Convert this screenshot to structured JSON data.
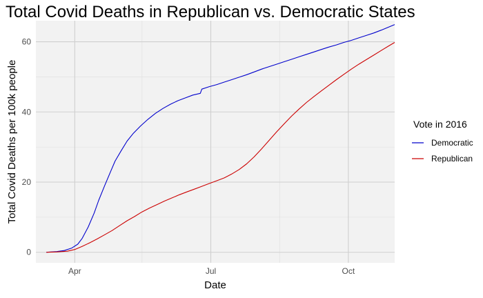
{
  "chart_data": {
    "type": "line",
    "title": "Total Covid Deaths in Republican vs. Democratic States",
    "xlabel": "Date",
    "ylabel": "Total Covid Deaths per 100k people",
    "x_range": [
      "2020-03-06",
      "2020-11-01"
    ],
    "ylim": [
      -3,
      66
    ],
    "x_ticks": [
      {
        "date": "2020-04-01",
        "label": "Apr"
      },
      {
        "date": "2020-07-01",
        "label": "Jul"
      },
      {
        "date": "2020-10-01",
        "label": "Oct"
      }
    ],
    "x_minor_ticks": [
      "2020-05-16",
      "2020-08-16"
    ],
    "y_ticks": [
      0,
      20,
      40,
      60
    ],
    "y_minor_ticks": [
      10,
      30,
      50
    ],
    "grid": true,
    "legend": {
      "title": "Vote in 2016",
      "position": "right"
    },
    "series": [
      {
        "name": "Democratic",
        "color": "#0000CC",
        "points": [
          [
            "2020-03-13",
            0.0
          ],
          [
            "2020-03-20",
            0.2
          ],
          [
            "2020-03-25",
            0.5
          ],
          [
            "2020-03-30",
            1.2
          ],
          [
            "2020-04-03",
            2.3
          ],
          [
            "2020-04-06",
            4.0
          ],
          [
            "2020-04-10",
            7.2
          ],
          [
            "2020-04-14",
            11.2
          ],
          [
            "2020-04-17",
            14.8
          ],
          [
            "2020-04-21",
            19.0
          ],
          [
            "2020-04-25",
            23.0
          ],
          [
            "2020-04-28",
            26.0
          ],
          [
            "2020-05-02",
            28.9
          ],
          [
            "2020-05-06",
            31.7
          ],
          [
            "2020-05-10",
            33.8
          ],
          [
            "2020-05-15",
            36.0
          ],
          [
            "2020-05-20",
            37.9
          ],
          [
            "2020-05-25",
            39.6
          ],
          [
            "2020-05-30",
            41.0
          ],
          [
            "2020-06-04",
            42.2
          ],
          [
            "2020-06-09",
            43.2
          ],
          [
            "2020-06-14",
            44.0
          ],
          [
            "2020-06-19",
            44.8
          ],
          [
            "2020-06-24",
            45.3
          ],
          [
            "2020-06-25",
            46.5
          ],
          [
            "2020-06-30",
            47.2
          ],
          [
            "2020-07-05",
            47.8
          ],
          [
            "2020-07-10",
            48.5
          ],
          [
            "2020-07-15",
            49.2
          ],
          [
            "2020-07-20",
            49.9
          ],
          [
            "2020-07-25",
            50.6
          ],
          [
            "2020-07-30",
            51.4
          ],
          [
            "2020-08-04",
            52.2
          ],
          [
            "2020-08-09",
            52.9
          ],
          [
            "2020-08-14",
            53.6
          ],
          [
            "2020-08-19",
            54.3
          ],
          [
            "2020-08-24",
            55.0
          ],
          [
            "2020-08-29",
            55.7
          ],
          [
            "2020-09-03",
            56.4
          ],
          [
            "2020-09-08",
            57.1
          ],
          [
            "2020-09-13",
            57.8
          ],
          [
            "2020-09-18",
            58.5
          ],
          [
            "2020-09-23",
            59.1
          ],
          [
            "2020-09-28",
            59.8
          ],
          [
            "2020-10-03",
            60.4
          ],
          [
            "2020-10-08",
            61.1
          ],
          [
            "2020-10-13",
            61.8
          ],
          [
            "2020-10-18",
            62.5
          ],
          [
            "2020-10-23",
            63.3
          ],
          [
            "2020-10-28",
            64.2
          ],
          [
            "2020-11-01",
            64.9
          ]
        ]
      },
      {
        "name": "Republican",
        "color": "#CC0000",
        "points": [
          [
            "2020-03-13",
            0.0
          ],
          [
            "2020-03-20",
            0.1
          ],
          [
            "2020-03-27",
            0.3
          ],
          [
            "2020-04-01",
            0.8
          ],
          [
            "2020-04-06",
            1.7
          ],
          [
            "2020-04-11",
            2.7
          ],
          [
            "2020-04-16",
            3.8
          ],
          [
            "2020-04-21",
            5.0
          ],
          [
            "2020-04-26",
            6.2
          ],
          [
            "2020-05-01",
            7.6
          ],
          [
            "2020-05-06",
            9.0
          ],
          [
            "2020-05-11",
            10.2
          ],
          [
            "2020-05-16",
            11.5
          ],
          [
            "2020-05-21",
            12.6
          ],
          [
            "2020-05-26",
            13.6
          ],
          [
            "2020-05-31",
            14.6
          ],
          [
            "2020-06-05",
            15.5
          ],
          [
            "2020-06-10",
            16.4
          ],
          [
            "2020-06-15",
            17.2
          ],
          [
            "2020-06-20",
            18.0
          ],
          [
            "2020-06-25",
            18.8
          ],
          [
            "2020-06-30",
            19.6
          ],
          [
            "2020-07-05",
            20.4
          ],
          [
            "2020-07-10",
            21.2
          ],
          [
            "2020-07-15",
            22.3
          ],
          [
            "2020-07-20",
            23.6
          ],
          [
            "2020-07-25",
            25.2
          ],
          [
            "2020-07-30",
            27.2
          ],
          [
            "2020-08-04",
            29.5
          ],
          [
            "2020-08-09",
            31.9
          ],
          [
            "2020-08-14",
            34.3
          ],
          [
            "2020-08-19",
            36.6
          ],
          [
            "2020-08-24",
            38.8
          ],
          [
            "2020-08-29",
            40.8
          ],
          [
            "2020-09-03",
            42.7
          ],
          [
            "2020-09-08",
            44.4
          ],
          [
            "2020-09-13",
            46.0
          ],
          [
            "2020-09-18",
            47.6
          ],
          [
            "2020-09-23",
            49.2
          ],
          [
            "2020-09-28",
            50.7
          ],
          [
            "2020-10-03",
            52.2
          ],
          [
            "2020-10-08",
            53.6
          ],
          [
            "2020-10-13",
            54.9
          ],
          [
            "2020-10-18",
            56.2
          ],
          [
            "2020-10-23",
            57.5
          ],
          [
            "2020-10-28",
            58.8
          ],
          [
            "2020-11-01",
            59.8
          ]
        ]
      }
    ]
  }
}
